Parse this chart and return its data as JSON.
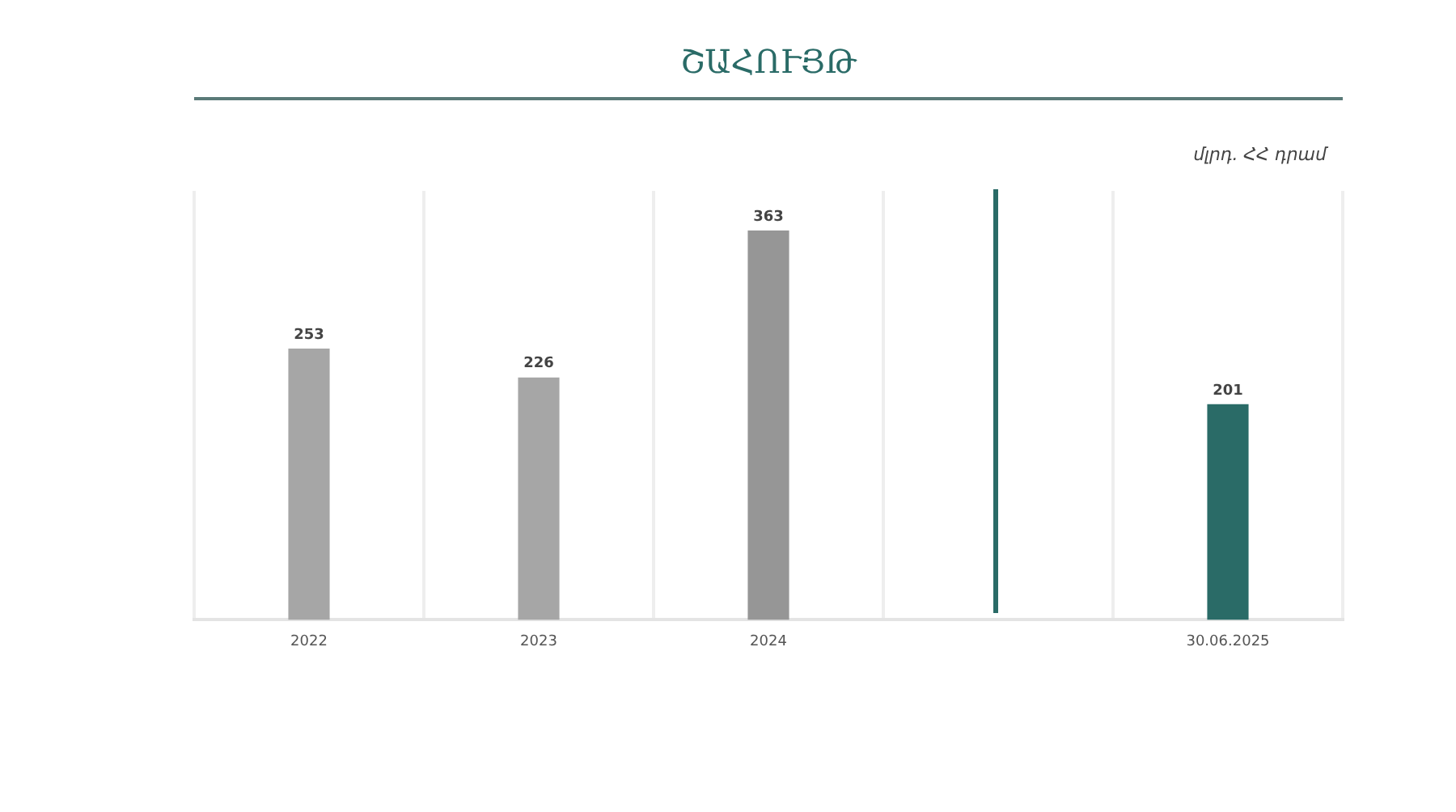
{
  "chart_data": {
    "type": "bar",
    "title": "ՇԱՀՈՒՅԹ",
    "ylabel": "մլրդ. ՀՀ դրամ",
    "categories": [
      "2022",
      "2023",
      "2024",
      null,
      "30.06.2025"
    ],
    "values": [
      253,
      226,
      363,
      null,
      201
    ],
    "colors": [
      "#a6a6a6",
      "#a6a6a6",
      "#969696",
      "#a6a6a6",
      "#2a6b67"
    ],
    "ylim": [
      0,
      400
    ],
    "grid": "x",
    "tick_labels": "x",
    "data_labels": true
  }
}
